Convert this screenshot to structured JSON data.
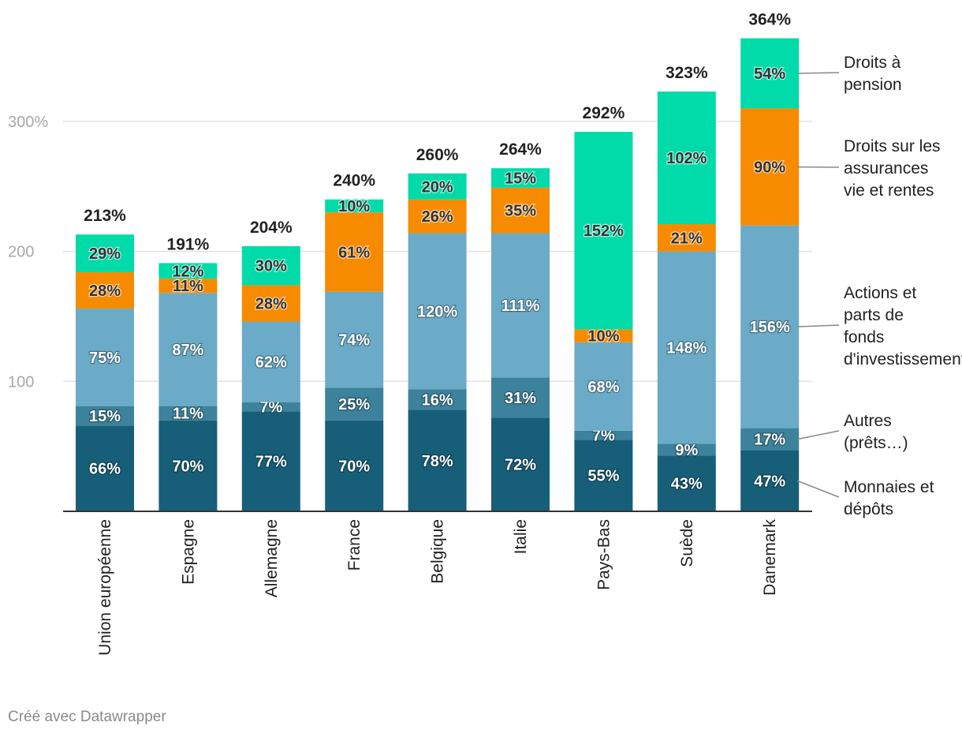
{
  "chart_data": {
    "type": "bar",
    "stacked": true,
    "categories": [
      "Union européenne",
      "Espagne",
      "Allemagne",
      "France",
      "Belgique",
      "Italie",
      "Pays-Bas",
      "Suède",
      "Danemark"
    ],
    "series": [
      {
        "name": "Monnaies et dépôts",
        "legend_lines": [
          "Monnaies et",
          "dépôts"
        ],
        "color": "#175f79",
        "values": [
          66,
          70,
          77,
          70,
          78,
          72,
          55,
          43,
          47
        ]
      },
      {
        "name": "Autres (prêts…)",
        "legend_lines": [
          "Autres",
          "(prêts…)"
        ],
        "color": "#3d829c",
        "values": [
          15,
          11,
          7,
          25,
          16,
          31,
          7,
          9,
          17
        ]
      },
      {
        "name": "Actions et parts de fonds d'investissement",
        "legend_lines": [
          "Actions et",
          "parts de",
          "fonds",
          "d'investissement"
        ],
        "color": "#6babc7",
        "values": [
          75,
          87,
          62,
          74,
          120,
          111,
          68,
          148,
          156
        ]
      },
      {
        "name": "Droits sur les assurances vie et rentes",
        "legend_lines": [
          "Droits sur les",
          "assurances",
          "vie et rentes"
        ],
        "color": "#f68b00",
        "values": [
          28,
          11,
          28,
          61,
          26,
          35,
          10,
          21,
          90
        ]
      },
      {
        "name": "Droits à pension",
        "legend_lines": [
          "Droits à",
          "pension"
        ],
        "color": "#00dba9",
        "values": [
          29,
          12,
          30,
          10,
          20,
          15,
          152,
          102,
          54
        ]
      }
    ],
    "totals": [
      213,
      191,
      204,
      240,
      260,
      264,
      292,
      323,
      364
    ],
    "label_suffix": "%",
    "y_ticks": [
      {
        "value": 100,
        "label": "100"
      },
      {
        "value": 200,
        "label": "200"
      },
      {
        "value": 300,
        "label": "300%"
      }
    ],
    "ylim": [
      0,
      364
    ],
    "grid": true,
    "legend_position": "right",
    "title": "",
    "xlabel": "",
    "ylabel": ""
  },
  "footer": {
    "credit": "Créé avec Datawrapper"
  }
}
